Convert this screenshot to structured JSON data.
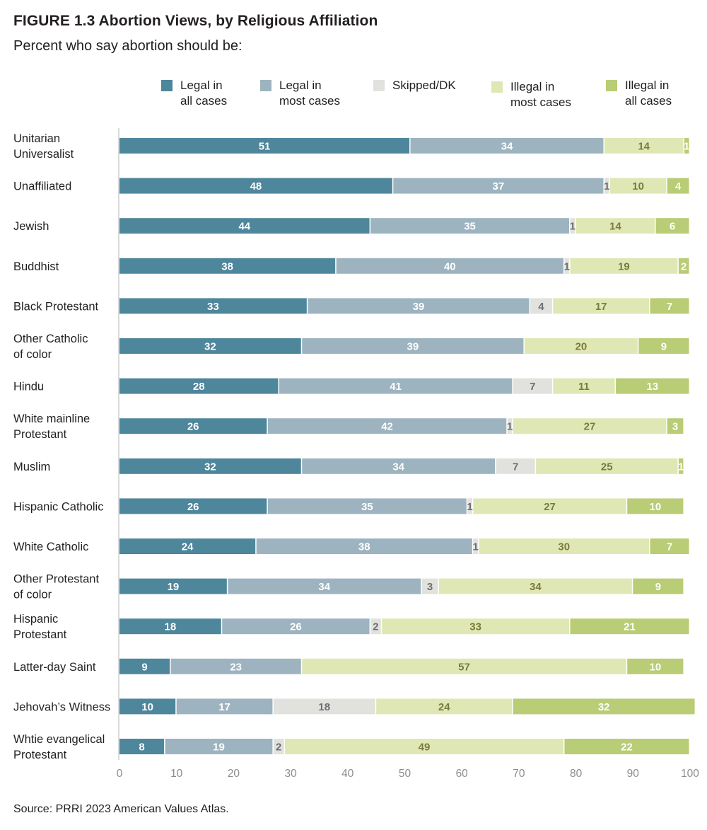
{
  "figure": {
    "title": "FIGURE 1.3  Abortion Views, by Religious Affiliation",
    "subtitle": "Percent who say abortion should be:",
    "source": "Source: PRRI 2023 American Values Atlas."
  },
  "legend": [
    {
      "label": "Legal in\nall cases",
      "color": "#4e869c"
    },
    {
      "label": "Legal in\nmost cases",
      "color": "#9db4c0"
    },
    {
      "label": "Skipped/DK",
      "color": "#e1e2dd"
    },
    {
      "label": "Illegal in\nmost cases",
      "color": "#dfe8b5"
    },
    {
      "label": "Illegal in\nall cases",
      "color": "#b9cc76"
    }
  ],
  "chart_data": {
    "type": "bar",
    "orientation": "horizontal",
    "stacked": true,
    "categories": [
      "Unitarian\nUniversalist",
      "Unaffiliated",
      "Jewish",
      "Buddhist",
      "Black Protestant",
      "Other Catholic\nof color",
      "Hindu",
      "White mainline\nProtestant",
      "Muslim",
      "Hispanic Catholic",
      "White Catholic",
      "Other Protestant\nof color",
      "Hispanic\nProtestant",
      "Latter-day Saint",
      "Jehovah’s Witness",
      "Whtie evangelical\nProtestant"
    ],
    "series": [
      {
        "name": "Legal in all cases",
        "color": "#4e869c",
        "label_color": "#ffffff",
        "values": [
          51,
          48,
          44,
          38,
          33,
          32,
          28,
          26,
          32,
          26,
          24,
          19,
          18,
          9,
          10,
          8
        ]
      },
      {
        "name": "Legal in most cases",
        "color": "#9db4c0",
        "label_color": "#ffffff",
        "values": [
          34,
          37,
          35,
          40,
          39,
          39,
          41,
          42,
          34,
          35,
          38,
          34,
          26,
          23,
          17,
          19
        ]
      },
      {
        "name": "Skipped/DK",
        "color": "#e1e2dd",
        "label_color": "#6d6e71",
        "values": [
          0,
          1,
          1,
          1,
          4,
          0,
          7,
          1,
          7,
          1,
          1,
          3,
          2,
          0,
          18,
          2
        ]
      },
      {
        "name": "Illegal in most cases",
        "color": "#dfe8b5",
        "label_color": "#7a7a3e",
        "values": [
          14,
          10,
          14,
          19,
          17,
          20,
          11,
          27,
          25,
          27,
          30,
          34,
          33,
          57,
          24,
          49
        ]
      },
      {
        "name": "Illegal in all cases",
        "color": "#b9cc76",
        "label_color": "#ffffff",
        "values": [
          1,
          4,
          6,
          2,
          7,
          9,
          13,
          3,
          1,
          10,
          7,
          9,
          21,
          10,
          32,
          22
        ]
      }
    ],
    "xlim": [
      0,
      100
    ],
    "xticks": [
      0,
      10,
      20,
      30,
      40,
      50,
      60,
      70,
      80,
      90,
      100
    ],
    "legend_position": "top",
    "grid": false
  }
}
